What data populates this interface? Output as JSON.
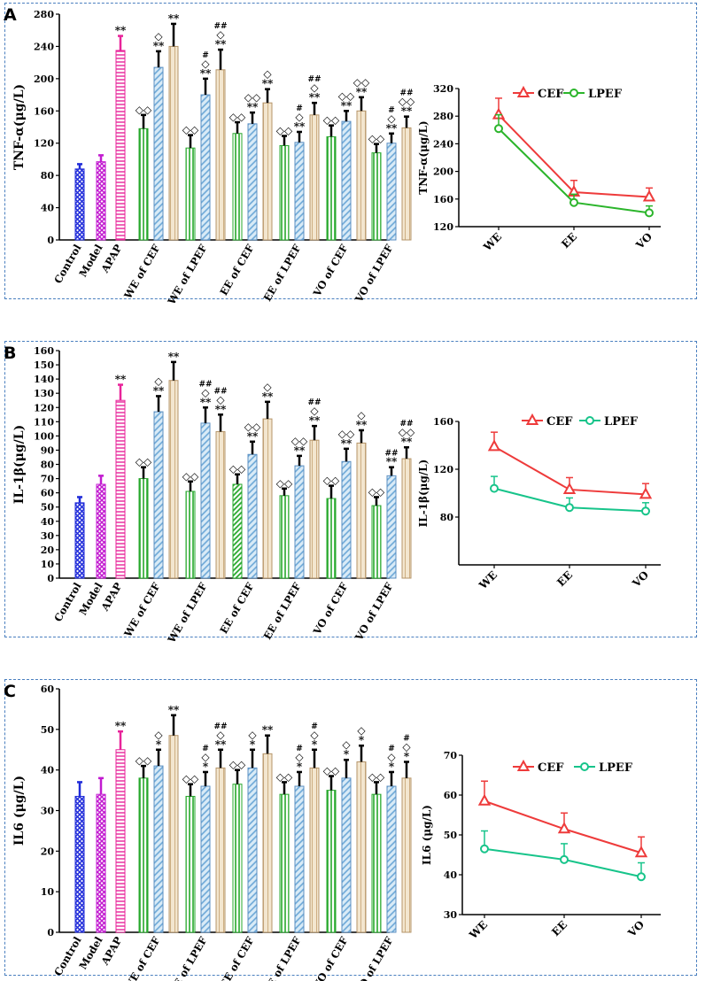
{
  "panel_labels": [
    "A",
    "B",
    "C"
  ],
  "colors": {
    "control": "#1f2bd9",
    "model": "#c21bd0",
    "apap": "#e8239a",
    "we_cef": "#27a82c",
    "we_lpef": "#8cc0e4",
    "ee": "#e9d5b5",
    "line_cef": "#ee3b3b",
    "line_lpef": "#17c48a",
    "line_lpef_a": "#2bb52b",
    "border": "#4a7fbf"
  },
  "chart_data": [
    {
      "type": "bar",
      "panel": "A",
      "ylabel": "TNF-α(μg/L)",
      "ylim": [
        0,
        280
      ],
      "yticks": [
        0,
        40,
        80,
        120,
        160,
        200,
        240,
        280
      ],
      "categories": [
        "Control",
        "Model",
        "APAP",
        "WE of CEF",
        "WE of LPEF",
        "EE of CEF",
        "EE of LPEF",
        "VO of CEF",
        "VO of LPEF"
      ],
      "bars": [
        {
          "group": 0,
          "value": 88,
          "error": 6,
          "annotation": []
        },
        {
          "group": 1,
          "value": 97,
          "error": 8,
          "annotation": []
        },
        {
          "group": 2,
          "value": 235,
          "error": 18,
          "annotation": [
            "**"
          ]
        },
        {
          "group": 3,
          "value": 138,
          "error": 17,
          "annotation": [
            "◇◇"
          ]
        },
        {
          "group": 3,
          "value": 214,
          "error": 20,
          "annotation": [
            "◇",
            "**"
          ]
        },
        {
          "group": 3,
          "value": 240,
          "error": 28,
          "annotation": [
            "**"
          ]
        },
        {
          "group": 4,
          "value": 114,
          "error": 16,
          "annotation": [
            "◇◇"
          ]
        },
        {
          "group": 4,
          "value": 180,
          "error": 20,
          "annotation": [
            "#",
            "◇",
            "**"
          ]
        },
        {
          "group": 4,
          "value": 211,
          "error": 25,
          "annotation": [
            "##",
            "◇",
            "**"
          ]
        },
        {
          "group": 5,
          "value": 132,
          "error": 14,
          "annotation": [
            "◇◇"
          ]
        },
        {
          "group": 5,
          "value": 144,
          "error": 14,
          "annotation": [
            "◇◇",
            "**"
          ]
        },
        {
          "group": 5,
          "value": 170,
          "error": 17,
          "annotation": [
            "◇",
            "**"
          ]
        },
        {
          "group": 6,
          "value": 117,
          "error": 12,
          "annotation": [
            "◇◇"
          ]
        },
        {
          "group": 6,
          "value": 121,
          "error": 13,
          "annotation": [
            "#",
            "◇",
            "**"
          ]
        },
        {
          "group": 6,
          "value": 155,
          "error": 15,
          "annotation": [
            "##",
            "◇",
            "**"
          ]
        },
        {
          "group": 7,
          "value": 128,
          "error": 14,
          "annotation": [
            "◇◇"
          ]
        },
        {
          "group": 7,
          "value": 147,
          "error": 13,
          "annotation": [
            "◇◇",
            "**"
          ]
        },
        {
          "group": 7,
          "value": 160,
          "error": 17,
          "annotation": [
            "◇◇",
            "**"
          ]
        },
        {
          "group": 8,
          "value": 108,
          "error": 11,
          "annotation": [
            "◇◇"
          ]
        },
        {
          "group": 8,
          "value": 120,
          "error": 12,
          "annotation": [
            "#",
            "◇",
            "**"
          ]
        },
        {
          "group": 8,
          "value": 139,
          "error": 14,
          "annotation": [
            "##",
            "◇◇",
            "**"
          ]
        }
      ],
      "line": {
        "type": "line",
        "categories": [
          "WE",
          "EE",
          "VO"
        ],
        "ylabel": "TNF-α(μg/L)",
        "ylim": [
          120,
          320
        ],
        "yticks": [
          120,
          160,
          200,
          240,
          280,
          320
        ],
        "series": [
          {
            "name": "CEF",
            "values": [
              282,
              170,
              163
            ],
            "errors": [
              24,
              17,
              13
            ]
          },
          {
            "name": "LPEF",
            "values": [
              262,
              155,
              140
            ],
            "errors": [
              20,
              12,
              10
            ]
          }
        ]
      }
    },
    {
      "type": "bar",
      "panel": "B",
      "ylabel": "IL-1β(μg/L)",
      "ylim": [
        0,
        160
      ],
      "yticks": [
        0,
        10,
        20,
        30,
        40,
        50,
        60,
        70,
        80,
        90,
        100,
        110,
        120,
        130,
        140,
        150,
        160
      ],
      "categories": [
        "Control",
        "Model",
        "APAP",
        "WE of CEF",
        "WE of LPEF",
        "EE of CEF",
        "EE of LPEF",
        "VO of CEF",
        "VO of LPEF"
      ],
      "bars": [
        {
          "group": 0,
          "value": 53,
          "error": 4,
          "annotation": []
        },
        {
          "group": 1,
          "value": 66,
          "error": 6,
          "annotation": []
        },
        {
          "group": 2,
          "value": 125,
          "error": 11,
          "annotation": [
            "**"
          ]
        },
        {
          "group": 3,
          "value": 70,
          "error": 8,
          "annotation": [
            "◇◇"
          ]
        },
        {
          "group": 3,
          "value": 117,
          "error": 11,
          "annotation": [
            "◇",
            "**"
          ]
        },
        {
          "group": 3,
          "value": 139,
          "error": 13,
          "annotation": [
            "**"
          ]
        },
        {
          "group": 4,
          "value": 61,
          "error": 7,
          "annotation": [
            "◇◇"
          ]
        },
        {
          "group": 4,
          "value": 109,
          "error": 11,
          "annotation": [
            "##",
            "◇",
            "**"
          ]
        },
        {
          "group": 4,
          "value": 103,
          "error": 12,
          "annotation": [
            "##",
            "◇",
            "**"
          ]
        },
        {
          "group": 5,
          "value": 66,
          "error": 7,
          "annotation": [
            "◇◇"
          ]
        },
        {
          "group": 5,
          "value": 87,
          "error": 9,
          "annotation": [
            "◇◇",
            "**"
          ]
        },
        {
          "group": 5,
          "value": 112,
          "error": 12,
          "annotation": [
            "◇",
            "**"
          ]
        },
        {
          "group": 6,
          "value": 58,
          "error": 5,
          "annotation": [
            "◇◇"
          ]
        },
        {
          "group": 6,
          "value": 79,
          "error": 7,
          "annotation": [
            "◇◇",
            "**"
          ]
        },
        {
          "group": 6,
          "value": 97,
          "error": 10,
          "annotation": [
            "##",
            "◇",
            "**"
          ]
        },
        {
          "group": 7,
          "value": 56,
          "error": 9,
          "annotation": [
            "◇◇"
          ]
        },
        {
          "group": 7,
          "value": 82,
          "error": 9,
          "annotation": [
            "◇◇",
            "**"
          ]
        },
        {
          "group": 7,
          "value": 95,
          "error": 9,
          "annotation": [
            "◇",
            "**"
          ]
        },
        {
          "group": 8,
          "value": 51,
          "error": 6,
          "annotation": [
            "◇◇"
          ]
        },
        {
          "group": 8,
          "value": 72,
          "error": 6,
          "annotation": [
            "##",
            "**"
          ]
        },
        {
          "group": 8,
          "value": 84,
          "error": 8,
          "annotation": [
            "##",
            "◇◇",
            "**"
          ]
        }
      ],
      "line": {
        "type": "line",
        "categories": [
          "WE",
          "EE",
          "VO"
        ],
        "ylabel": "IL-1β(μg/L)",
        "ylim": [
          40,
          160
        ],
        "yticks": [
          80,
          120,
          160
        ],
        "series": [
          {
            "name": "CEF",
            "values": [
              139,
              103,
              99
            ],
            "errors": [
              12,
              10,
              9
            ]
          },
          {
            "name": "LPEF",
            "values": [
              104,
              88,
              85
            ],
            "errors": [
              10,
              8,
              7
            ]
          }
        ]
      }
    },
    {
      "type": "bar",
      "panel": "C",
      "ylabel": "IL6 (μg/L)",
      "ylim": [
        0,
        60
      ],
      "yticks": [
        0,
        10,
        20,
        30,
        40,
        50,
        60
      ],
      "categories": [
        "Control",
        "Model",
        "APAP",
        "WE of CEF",
        "WE of LPEF",
        "EE of CEF",
        "EE of LPEF",
        "VO of CEF",
        "VO of LPEF"
      ],
      "bars": [
        {
          "group": 0,
          "value": 33.5,
          "error": 3.5,
          "annotation": []
        },
        {
          "group": 1,
          "value": 34,
          "error": 4,
          "annotation": []
        },
        {
          "group": 2,
          "value": 45,
          "error": 4.5,
          "annotation": [
            "**"
          ]
        },
        {
          "group": 3,
          "value": 38,
          "error": 3,
          "annotation": [
            "◇◇"
          ]
        },
        {
          "group": 3,
          "value": 41,
          "error": 4,
          "annotation": [
            "◇",
            "*"
          ]
        },
        {
          "group": 3,
          "value": 48.5,
          "error": 5,
          "annotation": [
            "**"
          ]
        },
        {
          "group": 4,
          "value": 33.5,
          "error": 3,
          "annotation": [
            "◇◇"
          ]
        },
        {
          "group": 4,
          "value": 36,
          "error": 3.5,
          "annotation": [
            "#",
            "◇",
            "*"
          ]
        },
        {
          "group": 4,
          "value": 40.5,
          "error": 4.5,
          "annotation": [
            "##",
            "◇",
            "**"
          ]
        },
        {
          "group": 5,
          "value": 36.5,
          "error": 3.5,
          "annotation": [
            "◇◇"
          ]
        },
        {
          "group": 5,
          "value": 40.5,
          "error": 4.5,
          "annotation": [
            "◇",
            "*"
          ]
        },
        {
          "group": 5,
          "value": 44,
          "error": 4.5,
          "annotation": [
            "**"
          ]
        },
        {
          "group": 6,
          "value": 34,
          "error": 3,
          "annotation": [
            "◇◇"
          ]
        },
        {
          "group": 6,
          "value": 36,
          "error": 3.5,
          "annotation": [
            "#",
            "◇",
            "*"
          ]
        },
        {
          "group": 6,
          "value": 40.5,
          "error": 4.5,
          "annotation": [
            "#",
            "◇",
            "*"
          ]
        },
        {
          "group": 7,
          "value": 35,
          "error": 3.5,
          "annotation": [
            "◇◇"
          ]
        },
        {
          "group": 7,
          "value": 38,
          "error": 4.5,
          "annotation": [
            "◇",
            "*"
          ]
        },
        {
          "group": 7,
          "value": 42,
          "error": 4,
          "annotation": [
            "◇",
            "*"
          ]
        },
        {
          "group": 8,
          "value": 34,
          "error": 3,
          "annotation": [
            "◇◇"
          ]
        },
        {
          "group": 8,
          "value": 36,
          "error": 3.5,
          "annotation": [
            "#",
            "◇",
            "*"
          ]
        },
        {
          "group": 8,
          "value": 38,
          "error": 4,
          "annotation": [
            "#",
            "◇",
            "*"
          ]
        }
      ],
      "line": {
        "type": "line",
        "categories": [
          "WE",
          "EE",
          "VO"
        ],
        "ylabel": "IL6 (μg/L)",
        "ylim": [
          30,
          70
        ],
        "yticks": [
          30,
          40,
          50,
          60,
          70
        ],
        "series": [
          {
            "name": "CEF",
            "values": [
              58.5,
              51.5,
              45.5
            ],
            "errors": [
              5,
              4,
              4
            ]
          },
          {
            "name": "LPEF",
            "values": [
              46.5,
              43.8,
              39.5
            ],
            "errors": [
              4.5,
              4,
              3.5
            ]
          }
        ]
      }
    }
  ]
}
